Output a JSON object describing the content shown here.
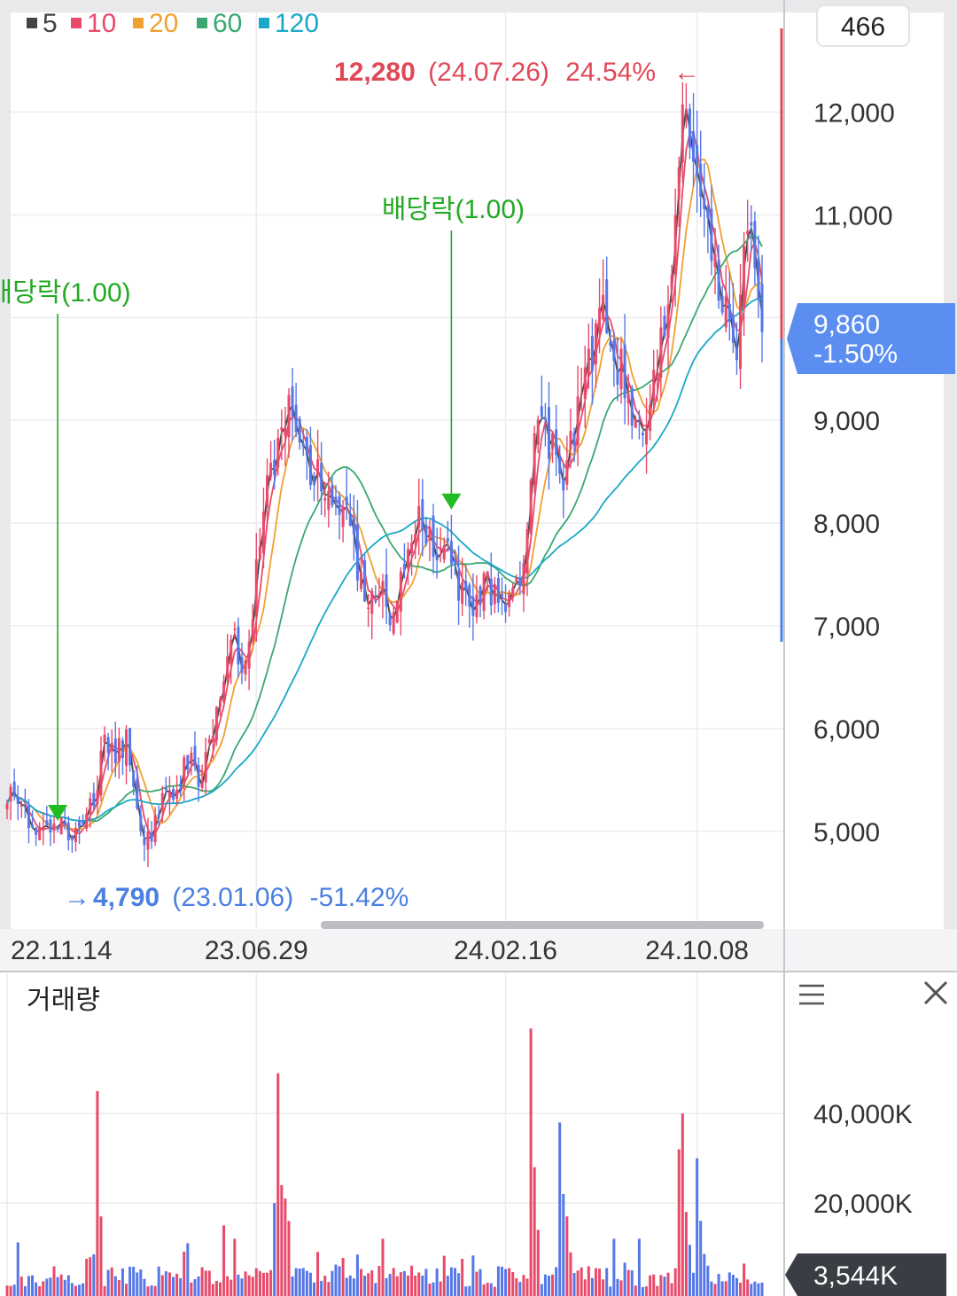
{
  "legend": [
    {
      "label": "5",
      "color": "#444444"
    },
    {
      "label": "10",
      "color": "#e84a6a"
    },
    {
      "label": "20",
      "color": "#f0a030"
    },
    {
      "label": "60",
      "color": "#3aa870"
    },
    {
      "label": "120",
      "color": "#1aa8c8"
    }
  ],
  "counter_badge": "466",
  "current_price": {
    "value": "9,860",
    "change": "-1.50%",
    "color": "#5b8ef0"
  },
  "volume_title": "거래량",
  "current_volume": "3,544K",
  "high_annotation": {
    "price": "12,280",
    "date": "(24.07.26)",
    "pct": "24.54%",
    "arrow": "←",
    "color": "#e04858"
  },
  "low_annotation": {
    "price": "4,790",
    "date": "(23.01.06)",
    "pct": "-51.42%",
    "arrow": "→",
    "color": "#4a80e0"
  },
  "dividend_events": [
    {
      "label": "배당락(1.00)",
      "index": 14
    },
    {
      "label": "배당락(1.00)",
      "index": 123
    }
  ],
  "colors": {
    "up": "#e84a6a",
    "down": "#5577e8",
    "grid": "#ececf0",
    "divider": "#cfcfd4"
  },
  "icons": {
    "menu": "hamburger-icon",
    "close": "close-icon"
  },
  "chart_data": [
    {
      "type": "candlestick",
      "x_ticks": [
        "22.11.14",
        "23.06.29",
        "24.02.16",
        "24.10.08"
      ],
      "x_tick_index": [
        0,
        69,
        138,
        191
      ],
      "y_ticks": [
        5000,
        6000,
        7000,
        8000,
        9000,
        10000,
        11000,
        12000
      ],
      "y_tick_labels": [
        "5,000",
        "6,000",
        "7,000",
        "8,000",
        "9,000",
        "",
        "11,000",
        "12,000"
      ],
      "ylim": [
        4170,
        12970
      ],
      "anchors": [
        [
          0,
          5400
        ],
        [
          3,
          5150
        ],
        [
          8,
          5080
        ],
        [
          12,
          5050
        ],
        [
          16,
          5020
        ],
        [
          18,
          4860
        ],
        [
          22,
          5100
        ],
        [
          25,
          5500
        ],
        [
          27,
          5900
        ],
        [
          30,
          5800
        ],
        [
          33,
          5850
        ],
        [
          35,
          5400
        ],
        [
          37,
          5000
        ],
        [
          40,
          4900
        ],
        [
          42,
          5200
        ],
        [
          47,
          5500
        ],
        [
          51,
          5700
        ],
        [
          54,
          5500
        ],
        [
          58,
          6200
        ],
        [
          60,
          6500
        ],
        [
          63,
          6900
        ],
        [
          65,
          6600
        ],
        [
          67,
          6800
        ],
        [
          70,
          7800
        ],
        [
          72,
          8400
        ],
        [
          75,
          8800
        ],
        [
          77,
          9000
        ],
        [
          79,
          9200
        ],
        [
          81,
          8900
        ],
        [
          84,
          8400
        ],
        [
          86,
          8600
        ],
        [
          89,
          8300
        ],
        [
          91,
          8300
        ],
        [
          93,
          8200
        ],
        [
          95,
          7900
        ],
        [
          97,
          7600
        ],
        [
          99,
          7400
        ],
        [
          101,
          7200
        ],
        [
          104,
          7500
        ],
        [
          106,
          7100
        ],
        [
          108,
          7400
        ],
        [
          111,
          7700
        ],
        [
          114,
          8050
        ],
        [
          117,
          7900
        ],
        [
          120,
          7700
        ],
        [
          123,
          7600
        ],
        [
          126,
          7300
        ],
        [
          129,
          7100
        ],
        [
          132,
          7450
        ],
        [
          135,
          7300
        ],
        [
          138,
          7200
        ],
        [
          141,
          7400
        ],
        [
          144,
          7800
        ],
        [
          145,
          8400
        ],
        [
          147,
          9100
        ],
        [
          149,
          8800
        ],
        [
          152,
          8700
        ],
        [
          154,
          8500
        ],
        [
          157,
          8900
        ],
        [
          160,
          9600
        ],
        [
          162,
          9700
        ],
        [
          165,
          10200
        ],
        [
          167,
          9700
        ],
        [
          170,
          9500
        ],
        [
          172,
          9300
        ],
        [
          175,
          8800
        ],
        [
          177,
          9100
        ],
        [
          180,
          9600
        ],
        [
          182,
          10000
        ],
        [
          184,
          10300
        ],
        [
          185,
          11000
        ],
        [
          187,
          11900
        ],
        [
          188,
          12200
        ],
        [
          190,
          11300
        ],
        [
          193,
          10900
        ],
        [
          196,
          10400
        ],
        [
          198,
          10200
        ],
        [
          200,
          10000
        ],
        [
          202,
          9600
        ],
        [
          204,
          10600
        ],
        [
          206,
          10800
        ],
        [
          207,
          10300
        ],
        [
          209,
          9860
        ]
      ],
      "extremes": [
        {
          "index": 188,
          "high": 12280
        },
        {
          "index": 18,
          "low": 4790
        }
      ],
      "ma_periods": [
        5,
        10,
        20,
        60,
        120
      ]
    },
    {
      "type": "bar",
      "title": "거래량",
      "y_ticks": [
        20000,
        40000
      ],
      "y_tick_labels": [
        "20,000K",
        "40,000K"
      ],
      "ylim": [
        0,
        65000
      ],
      "spikes": [
        [
          25,
          45000
        ],
        [
          26,
          17000
        ],
        [
          74,
          20000
        ],
        [
          75,
          49000
        ],
        [
          76,
          24000
        ],
        [
          77,
          21000
        ],
        [
          78,
          16000
        ],
        [
          60,
          15000
        ],
        [
          63,
          12000
        ],
        [
          50,
          11000
        ],
        [
          145,
          59000
        ],
        [
          146,
          28000
        ],
        [
          147,
          14000
        ],
        [
          153,
          38000
        ],
        [
          154,
          22000
        ],
        [
          155,
          17000
        ],
        [
          186,
          32000
        ],
        [
          187,
          40000
        ],
        [
          188,
          18000
        ],
        [
          191,
          30000
        ],
        [
          192,
          16000
        ],
        [
          168,
          12000
        ],
        [
          175,
          12000
        ],
        [
          104,
          12000
        ]
      ]
    }
  ]
}
